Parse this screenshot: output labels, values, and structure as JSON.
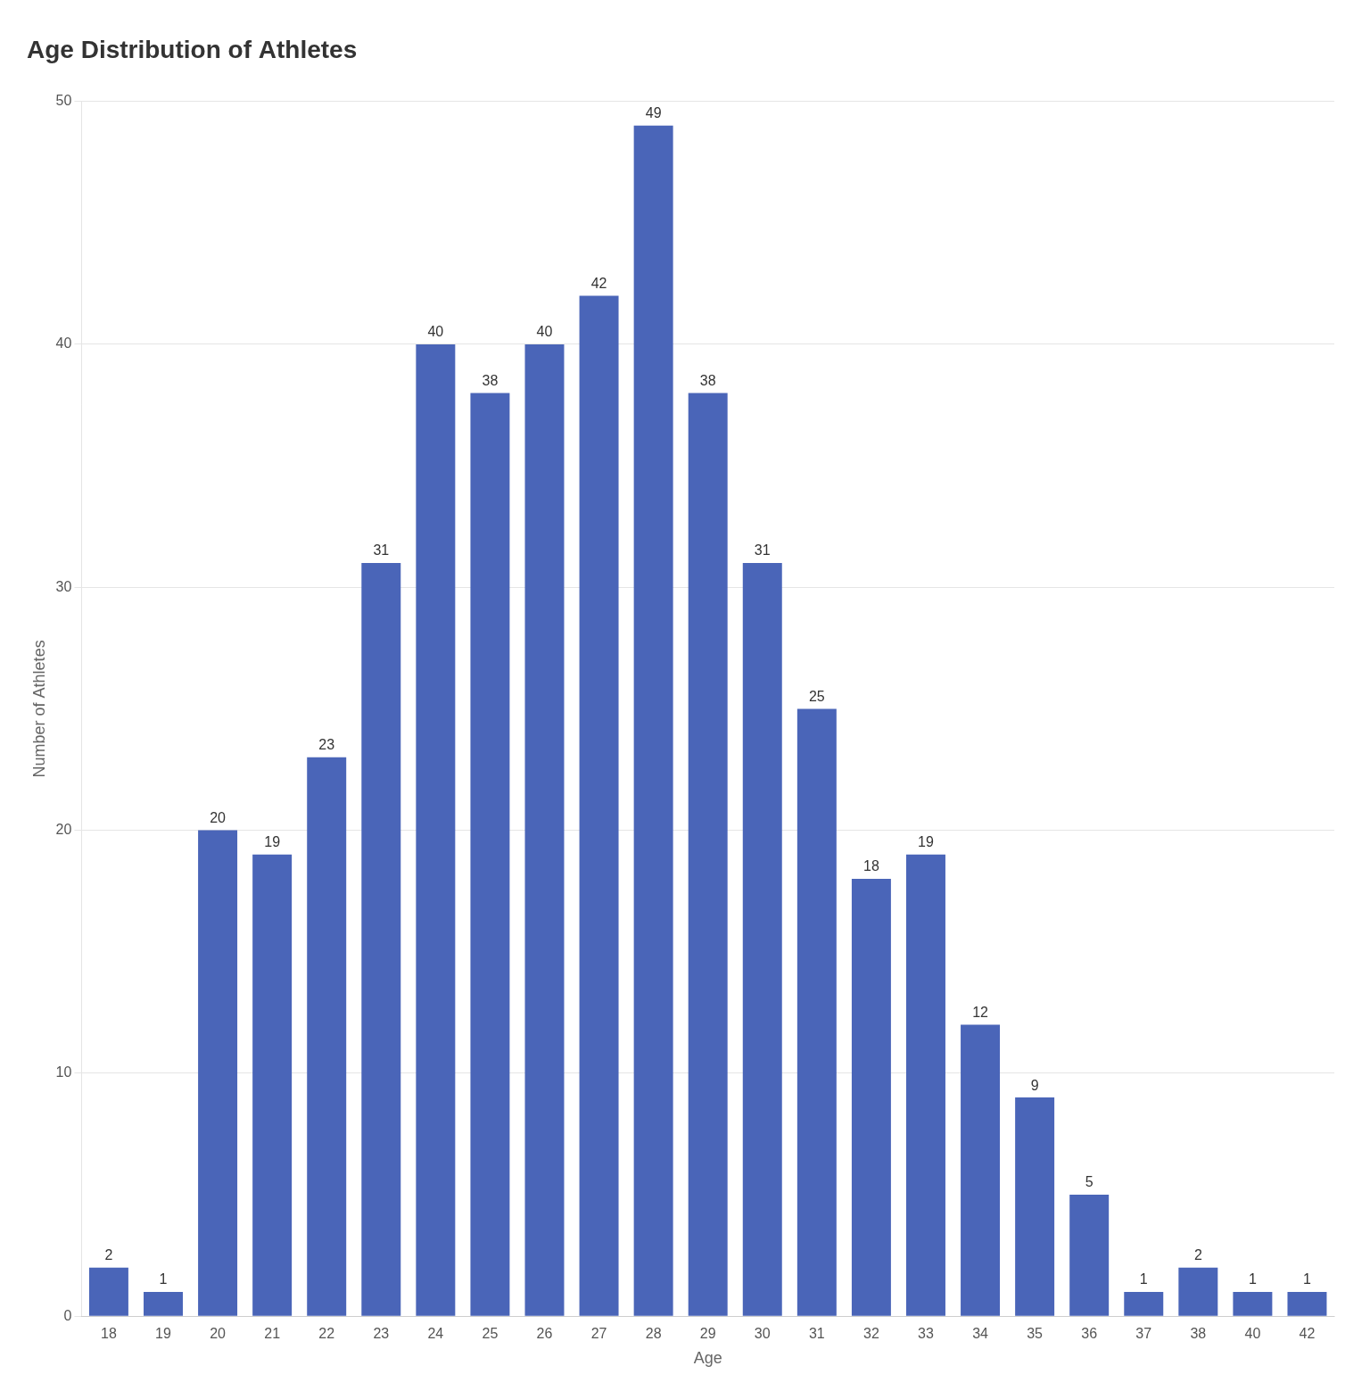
{
  "chart_data": {
    "type": "bar",
    "title": "Age Distribution of Athletes",
    "x_label": "Age",
    "y_label": "Number of Athletes",
    "categories": [
      "18",
      "19",
      "20",
      "21",
      "22",
      "23",
      "24",
      "25",
      "26",
      "27",
      "28",
      "29",
      "30",
      "31",
      "32",
      "33",
      "34",
      "35",
      "36",
      "37",
      "38",
      "40",
      "42"
    ],
    "values": [
      2,
      1,
      20,
      19,
      23,
      31,
      40,
      38,
      40,
      42,
      49,
      38,
      31,
      25,
      18,
      19,
      12,
      9,
      5,
      1,
      2,
      1,
      1
    ],
    "color": "#4a65b8",
    "ylim": [
      0,
      50
    ],
    "yticks": [
      0,
      10,
      20,
      30,
      40,
      50
    ],
    "grid": true,
    "data_labels": true
  }
}
